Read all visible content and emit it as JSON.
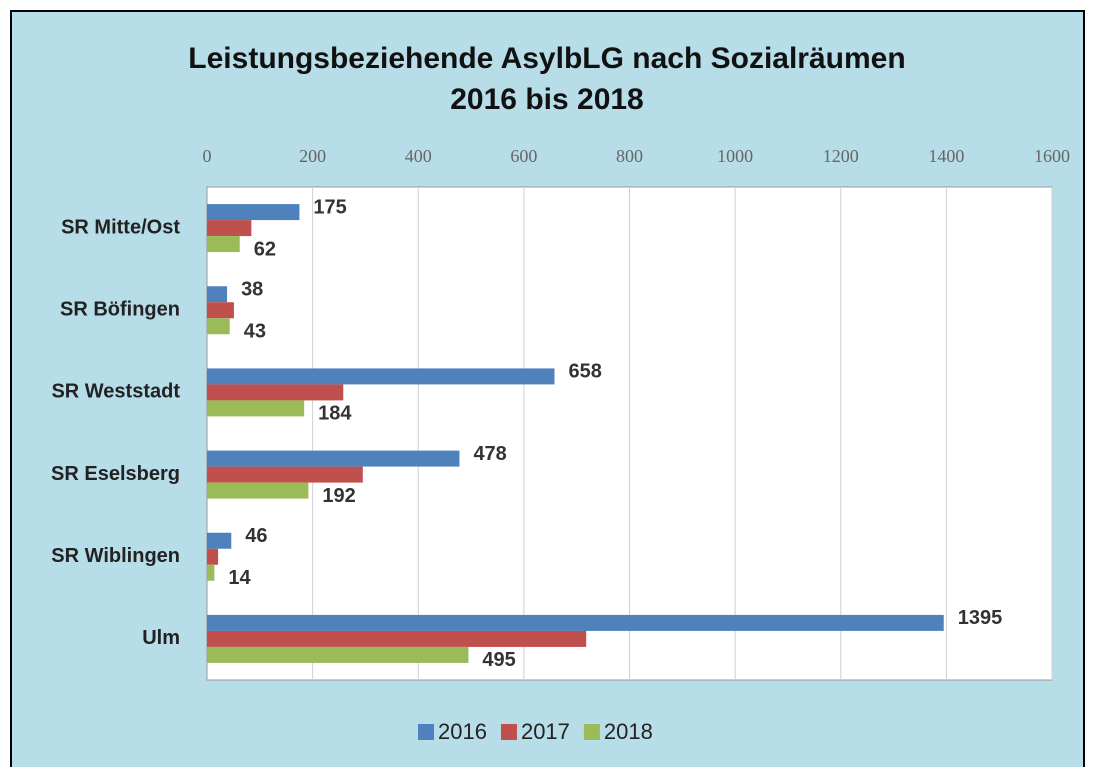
{
  "chart_data": {
    "type": "hbar",
    "title": "Leistungsbeziehende AsylbLG nach Sozialräumen",
    "subtitle": "2016 bis 2018",
    "categories": [
      "SR Mitte/Ost",
      "SR Böfingen",
      "SR Weststadt",
      "SR Eselsberg",
      "SR Wiblingen",
      "Ulm"
    ],
    "series": [
      {
        "name": "2016",
        "color": "#4f81bd",
        "values": [
          175,
          38,
          658,
          478,
          46,
          1395
        ],
        "labels": true
      },
      {
        "name": "2017",
        "color": "#c0504d",
        "values": [
          84,
          51,
          258,
          295,
          21,
          718
        ],
        "labels": false
      },
      {
        "name": "2018",
        "color": "#9bbb59",
        "values": [
          62,
          43,
          184,
          192,
          14,
          495
        ],
        "labels": true
      }
    ],
    "xlim": [
      0,
      1600
    ],
    "xticks": [
      0,
      200,
      400,
      600,
      800,
      1000,
      1200,
      1400,
      1600
    ],
    "grid": true,
    "legend": "bottom"
  }
}
